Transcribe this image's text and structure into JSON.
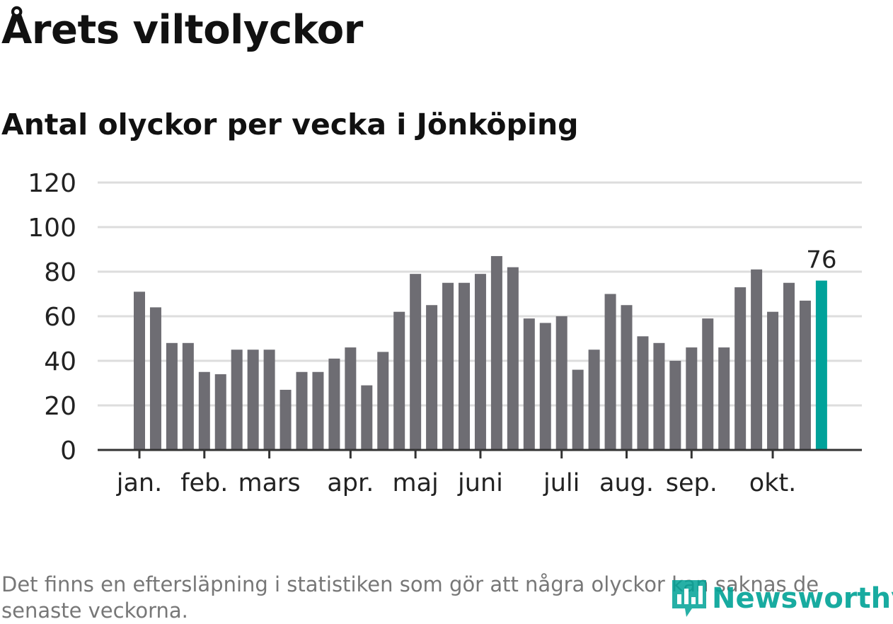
{
  "title": "Årets viltolyckor",
  "subtitle": "Antal olyckor per vecka i Jönköping",
  "footnote": "Det finns en eftersläpning i statistiken som gör att några olyckor kan saknas de senaste veckorna.",
  "brand": {
    "name": "Newsworthy",
    "icon": "newsworthy-logo-icon",
    "color": "#00a296"
  },
  "colors": {
    "bar": "#6e6d73",
    "highlight": "#00a29a",
    "grid": "#dddddd",
    "axis": "#333333"
  },
  "chart_data": {
    "type": "bar",
    "title": "",
    "xlabel": "",
    "ylabel": "",
    "ylim": [
      0,
      120
    ],
    "yticks": [
      0,
      20,
      40,
      60,
      80,
      100,
      120
    ],
    "grid": true,
    "values": [
      71,
      64,
      48,
      48,
      35,
      34,
      45,
      45,
      45,
      27,
      35,
      35,
      41,
      46,
      29,
      44,
      62,
      79,
      65,
      75,
      75,
      79,
      87,
      82,
      59,
      57,
      60,
      36,
      45,
      70,
      65,
      51,
      48,
      40,
      46,
      59,
      46,
      73,
      81,
      62,
      75,
      67,
      76
    ],
    "highlight_index": 42,
    "highlight_label": "76",
    "month_labels": [
      {
        "label": "jan.",
        "bar_index": 0
      },
      {
        "label": "feb.",
        "bar_index": 4
      },
      {
        "label": "mars",
        "bar_index": 8
      },
      {
        "label": "apr.",
        "bar_index": 13
      },
      {
        "label": "maj",
        "bar_index": 17
      },
      {
        "label": "juni",
        "bar_index": 21
      },
      {
        "label": "juli",
        "bar_index": 26
      },
      {
        "label": "aug.",
        "bar_index": 30
      },
      {
        "label": "sep.",
        "bar_index": 34
      },
      {
        "label": "okt.",
        "bar_index": 39
      }
    ]
  }
}
